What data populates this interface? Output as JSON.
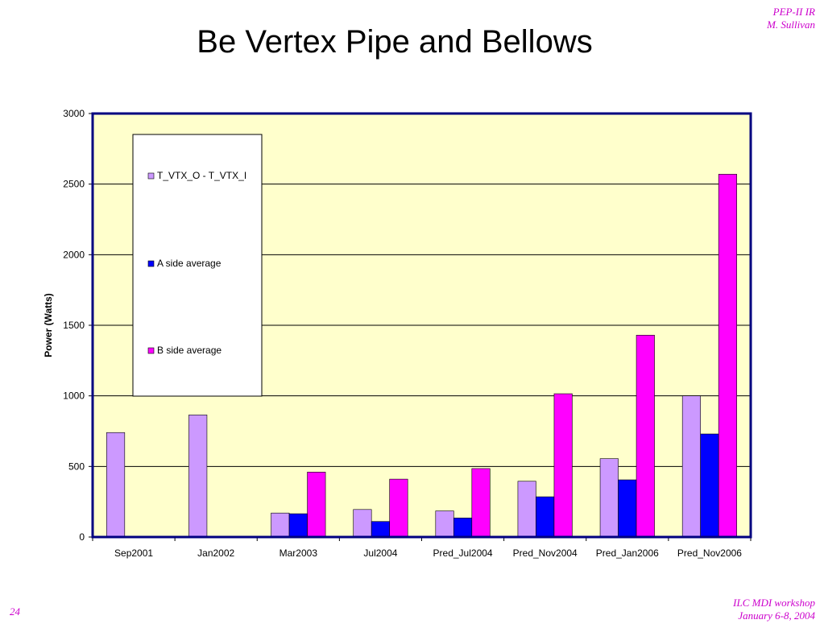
{
  "header": {
    "title": "Be Vertex Pipe and Bellows",
    "corner_top_line1": "PEP-II IR",
    "corner_top_line2": "M. Sullivan",
    "corner_bottom_line1": "ILC MDI workshop",
    "corner_bottom_line2": "January 6-8, 2004",
    "page_number": "24"
  },
  "colors": {
    "plot_background": "#ffffcc",
    "series_1": "#cc99ff",
    "series_2": "#0000ff",
    "series_3": "#ff00ff",
    "corner_text": "#cc00cc"
  },
  "chart_data": {
    "type": "bar",
    "title": "",
    "xlabel": "",
    "ylabel": "Power  (Watts)",
    "ylim": [
      0,
      3000
    ],
    "yticks": [
      0,
      500,
      1000,
      1500,
      2000,
      2500,
      3000
    ],
    "grid": true,
    "legend_position": "top-left",
    "categories": [
      "Sep2001",
      "Jan2002",
      "Mar2003",
      "Jul2004",
      "Pred_Jul2004",
      "Pred_Nov2004",
      "Pred_Jan2006",
      "Pred_Nov2006"
    ],
    "series": [
      {
        "name": "T_VTX_O - T_VTX_I",
        "color": "#cc99ff",
        "values": [
          740,
          865,
          170,
          195,
          185,
          395,
          555,
          1000
        ]
      },
      {
        "name": "A side average",
        "color": "#0000ff",
        "values": [
          0,
          0,
          165,
          110,
          135,
          285,
          405,
          730
        ]
      },
      {
        "name": "B side average",
        "color": "#ff00ff",
        "values": [
          0,
          0,
          460,
          410,
          485,
          1015,
          1430,
          2570
        ]
      }
    ]
  }
}
